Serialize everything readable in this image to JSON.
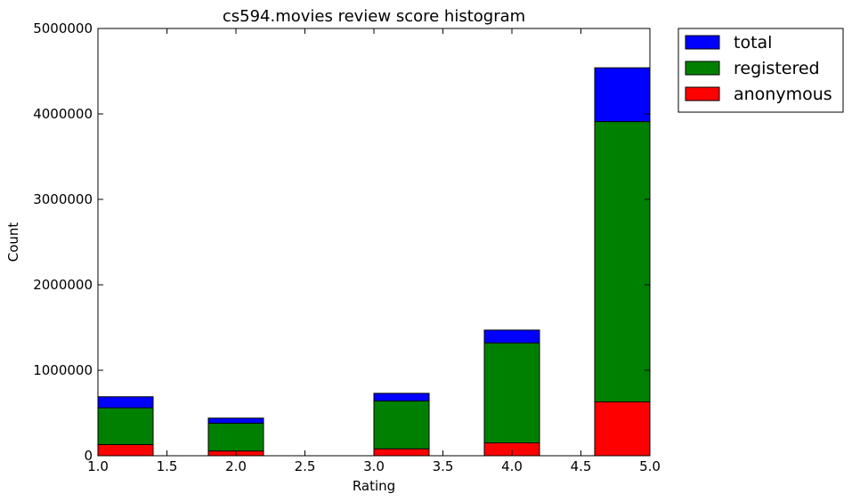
{
  "chart_data": {
    "type": "bar",
    "title": "cs594.movies review score histogram",
    "xlabel": "Rating",
    "ylabel": "Count",
    "xlim": [
      1.0,
      5.0
    ],
    "ylim": [
      0,
      5000000
    ],
    "xticks": [
      "1.0",
      "1.5",
      "2.0",
      "2.5",
      "3.0",
      "3.5",
      "4.0",
      "4.5",
      "5.0"
    ],
    "yticks": [
      "0",
      "1000000",
      "2000000",
      "3000000",
      "4000000",
      "5000000"
    ],
    "bin_edges": [
      [
        1.0,
        1.4
      ],
      [
        1.8,
        2.2
      ],
      [
        3.0,
        3.4
      ],
      [
        3.8,
        4.2
      ],
      [
        4.6,
        5.0
      ]
    ],
    "series": [
      {
        "name": "total",
        "color": "#0000ff",
        "values": [
          690000,
          440000,
          730000,
          1470000,
          4540000
        ]
      },
      {
        "name": "registered",
        "color": "#008000",
        "values": [
          560000,
          380000,
          640000,
          1320000,
          3910000
        ]
      },
      {
        "name": "anonymous",
        "color": "#ff0000",
        "values": [
          130000,
          55000,
          80000,
          150000,
          630000
        ]
      }
    ],
    "legend_position": "outside top-right",
    "grid": false
  }
}
